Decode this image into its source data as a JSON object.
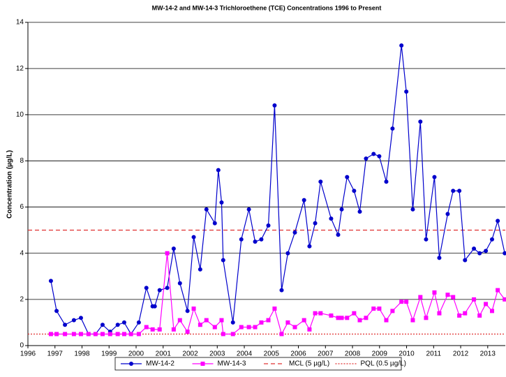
{
  "chart_data": {
    "type": "line",
    "title": "MW-14-2 and MW-14-3 Trichloroethene (TCE) Concentrations 1996 to Present",
    "y_label": "Concentration (µg/L)",
    "xlim": [
      1996,
      2013.65
    ],
    "xticks": [
      1996,
      1997,
      1998,
      1999,
      2000,
      2001,
      2002,
      2003,
      2004,
      2005,
      2006,
      2007,
      2008,
      2009,
      2010,
      2011,
      2012,
      2013
    ],
    "ylim": [
      0,
      14
    ],
    "yticks": [
      0,
      2,
      4,
      6,
      8,
      10,
      12,
      14
    ],
    "grid": true,
    "legend": "bottom",
    "series": [
      {
        "name": "MW-14-2",
        "color": "#0000cc",
        "marker": "circle",
        "x": [
          1996.85,
          1997.06,
          1997.37,
          1997.7,
          1997.96,
          1998.24,
          1998.5,
          1998.76,
          1999.04,
          1999.32,
          1999.56,
          1999.81,
          2000.1,
          2000.38,
          2000.61,
          2000.69,
          2000.87,
          2001.15,
          2001.39,
          2001.62,
          2001.9,
          2002.13,
          2002.37,
          2002.6,
          2002.91,
          2003.04,
          2003.16,
          2003.22,
          2003.58,
          2003.89,
          2004.17,
          2004.4,
          2004.63,
          2004.89,
          2005.12,
          2005.38,
          2005.61,
          2005.87,
          2006.21,
          2006.41,
          2006.62,
          2006.82,
          2007.21,
          2007.47,
          2007.6,
          2007.8,
          2008.06,
          2008.27,
          2008.5,
          2008.78,
          2008.99,
          2009.25,
          2009.48,
          2009.81,
          2009.99,
          2010.23,
          2010.51,
          2010.72,
          2011.03,
          2011.21,
          2011.52,
          2011.72,
          2011.95,
          2012.16,
          2012.49,
          2012.7,
          2012.93,
          2013.16,
          2013.37,
          2013.63
        ],
        "values": [
          2.8,
          1.5,
          0.9,
          1.1,
          1.2,
          0.5,
          0.5,
          0.9,
          0.6,
          0.9,
          1.0,
          0.5,
          1.0,
          2.5,
          1.7,
          1.7,
          2.4,
          2.5,
          4.2,
          2.7,
          1.5,
          4.7,
          3.3,
          5.9,
          5.3,
          7.6,
          6.2,
          3.7,
          1.0,
          4.6,
          5.9,
          4.5,
          4.6,
          5.2,
          10.4,
          2.4,
          4.0,
          4.9,
          6.3,
          4.3,
          5.3,
          7.1,
          5.5,
          4.8,
          5.9,
          7.3,
          6.7,
          5.8,
          8.1,
          8.3,
          8.2,
          7.1,
          9.4,
          13.0,
          11.0,
          5.9,
          9.7,
          4.6,
          7.3,
          3.8,
          5.7,
          6.7,
          6.7,
          3.7,
          4.2,
          4.0,
          4.1,
          4.6,
          5.4,
          4.0
        ]
      },
      {
        "name": "MW-14-3",
        "color": "#ff00ff",
        "marker": "square",
        "x": [
          1996.85,
          1997.06,
          1997.37,
          1997.7,
          1997.96,
          1998.24,
          1998.5,
          1998.76,
          1999.04,
          1999.32,
          1999.56,
          1999.81,
          2000.1,
          2000.38,
          2000.61,
          2000.87,
          2001.15,
          2001.39,
          2001.62,
          2001.9,
          2002.13,
          2002.37,
          2002.6,
          2002.91,
          2003.16,
          2003.22,
          2003.58,
          2003.89,
          2004.17,
          2004.4,
          2004.63,
          2004.89,
          2005.12,
          2005.38,
          2005.61,
          2005.87,
          2006.21,
          2006.41,
          2006.62,
          2006.82,
          2007.21,
          2007.47,
          2007.6,
          2007.8,
          2008.06,
          2008.27,
          2008.5,
          2008.78,
          2008.99,
          2009.25,
          2009.48,
          2009.81,
          2009.99,
          2010.23,
          2010.51,
          2010.72,
          2011.03,
          2011.21,
          2011.52,
          2011.72,
          2011.95,
          2012.16,
          2012.49,
          2012.7,
          2012.93,
          2013.16,
          2013.37,
          2013.63
        ],
        "values": [
          0.5,
          0.5,
          0.5,
          0.5,
          0.5,
          0.5,
          0.5,
          0.5,
          0.5,
          0.5,
          0.5,
          0.5,
          0.5,
          0.8,
          0.7,
          0.7,
          4.0,
          0.7,
          1.1,
          0.6,
          1.6,
          0.9,
          1.1,
          0.8,
          1.1,
          0.5,
          0.5,
          0.8,
          0.8,
          0.8,
          1.0,
          1.1,
          1.6,
          0.5,
          1.0,
          0.8,
          1.1,
          0.7,
          1.4,
          1.4,
          1.3,
          1.2,
          1.2,
          1.2,
          1.4,
          1.1,
          1.2,
          1.6,
          1.6,
          1.1,
          1.5,
          1.9,
          1.9,
          1.1,
          2.1,
          1.2,
          2.3,
          1.4,
          2.2,
          2.1,
          1.3,
          1.4,
          2.0,
          1.3,
          1.8,
          1.5,
          2.4,
          2.0
        ]
      }
    ],
    "reference_lines": [
      {
        "name": "MCL (5 µg/L)",
        "value": 5,
        "color": "#e03030",
        "style": "dashed"
      },
      {
        "name": "PQL (0.5 µg/L)",
        "value": 0.5,
        "color": "#e03030",
        "style": "dotted"
      }
    ]
  }
}
